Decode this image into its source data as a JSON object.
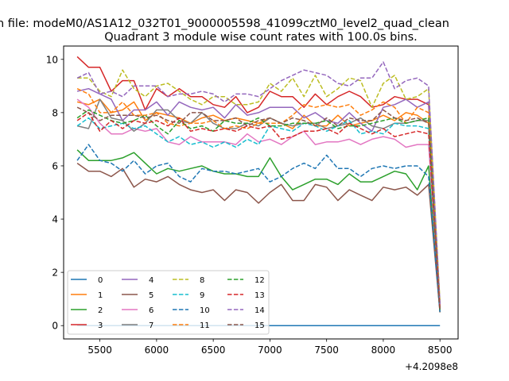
{
  "chart_data": {
    "type": "line",
    "suptitle": "n file: modeM0/AS1A12_032T01_9000005598_41099cztM0_level2_quad_clean",
    "title": "Quadrant 3 module wise count rates with 100.0s bins.",
    "xlabel": "",
    "ylabel": "",
    "x_offset_label": "+4.2098e8",
    "xlim": [
      5180,
      8660
    ],
    "ylim": [
      -0.5,
      10.5
    ],
    "x_ticks": [
      5500,
      6000,
      6500,
      7000,
      7500,
      8000,
      8500
    ],
    "y_ticks": [
      0,
      2,
      4,
      6,
      8,
      10
    ],
    "legend_position": "lower-left",
    "x": [
      5300,
      5400,
      5500,
      5600,
      5700,
      5800,
      5900,
      6000,
      6100,
      6200,
      6300,
      6400,
      6500,
      6600,
      6700,
      6800,
      6900,
      7000,
      7100,
      7200,
      7300,
      7400,
      7500,
      7600,
      7700,
      7800,
      7900,
      8000,
      8100,
      8200,
      8300,
      8400,
      8500
    ],
    "series": [
      {
        "name": "0",
        "color": "#1f77b4",
        "dash": "solid",
        "values": [
          0,
          0,
          0,
          0,
          0,
          0,
          0,
          0,
          0,
          0,
          0,
          0,
          0,
          0,
          0,
          0,
          0,
          0,
          0,
          0,
          0,
          0,
          0,
          0,
          0,
          0,
          0,
          0,
          0,
          0,
          0,
          0,
          0
        ]
      },
      {
        "name": "1",
        "color": "#ff7f0e",
        "dash": "solid",
        "values": [
          8.4,
          8.3,
          8.5,
          8.0,
          8.1,
          8.4,
          7.7,
          8.0,
          7.9,
          7.8,
          7.6,
          7.8,
          7.9,
          7.7,
          7.8,
          7.7,
          7.6,
          7.8,
          7.6,
          7.4,
          7.9,
          7.5,
          7.5,
          7.9,
          7.5,
          7.6,
          7.7,
          7.9,
          7.7,
          8.0,
          7.9,
          7.6,
          0.6
        ]
      },
      {
        "name": "2",
        "color": "#2ca02c",
        "dash": "solid",
        "values": [
          6.6,
          6.2,
          6.2,
          6.2,
          6.3,
          6.5,
          6.1,
          5.7,
          5.9,
          5.8,
          5.9,
          6.0,
          5.8,
          5.7,
          5.7,
          5.6,
          5.6,
          6.3,
          5.6,
          5.1,
          5.3,
          5.5,
          5.5,
          5.3,
          5.7,
          5.4,
          5.4,
          5.6,
          5.8,
          5.7,
          5.1,
          6.0,
          0.5
        ]
      },
      {
        "name": "3",
        "color": "#d62728",
        "dash": "solid",
        "values": [
          10.1,
          9.7,
          9.7,
          8.8,
          9.2,
          9.2,
          8.1,
          8.9,
          8.6,
          8.9,
          8.6,
          8.6,
          8.3,
          8.2,
          8.6,
          8.0,
          8.2,
          8.8,
          8.6,
          8.6,
          8.2,
          8.7,
          8.3,
          8.6,
          8.8,
          8.6,
          8.2,
          8.3,
          8.6,
          8.5,
          8.5,
          8.3,
          0.6
        ]
      },
      {
        "name": "4",
        "color": "#9467bd",
        "dash": "solid",
        "values": [
          8.8,
          8.9,
          8.7,
          8.5,
          7.7,
          8.1,
          8.1,
          8.4,
          7.9,
          8.4,
          8.2,
          8.1,
          8.2,
          7.8,
          8.3,
          7.9,
          8.0,
          8.2,
          8.2,
          8.2,
          7.8,
          8.0,
          7.7,
          7.6,
          8.0,
          7.6,
          7.3,
          8.2,
          8.3,
          8.5,
          8.2,
          8.4,
          0.8
        ]
      },
      {
        "name": "5",
        "color": "#8c564b",
        "dash": "solid",
        "values": [
          6.1,
          5.8,
          5.8,
          5.6,
          5.9,
          5.2,
          5.5,
          5.4,
          5.6,
          5.3,
          5.1,
          5.0,
          5.1,
          4.7,
          5.1,
          5.0,
          4.6,
          5.0,
          5.3,
          4.7,
          4.7,
          5.3,
          5.2,
          4.7,
          5.1,
          4.9,
          4.7,
          5.2,
          5.1,
          5.2,
          4.9,
          5.3,
          0.5
        ]
      },
      {
        "name": "6",
        "color": "#e377c2",
        "dash": "solid",
        "values": [
          8.5,
          8.2,
          7.6,
          7.2,
          7.2,
          7.4,
          7.3,
          7.4,
          6.9,
          6.8,
          7.1,
          6.9,
          6.9,
          6.9,
          6.8,
          7.2,
          6.9,
          7.0,
          6.8,
          7.1,
          7.3,
          6.8,
          6.9,
          6.9,
          7.0,
          6.8,
          7.0,
          7.1,
          7.0,
          6.7,
          6.8,
          6.8,
          0.7
        ]
      },
      {
        "name": "7",
        "color": "#7f7f7f",
        "dash": "solid",
        "values": [
          7.5,
          7.4,
          8.5,
          7.8,
          7.7,
          7.3,
          7.6,
          8.1,
          8.1,
          7.7,
          7.6,
          8.0,
          7.6,
          7.4,
          7.4,
          7.6,
          7.5,
          7.8,
          7.6,
          7.5,
          7.6,
          7.6,
          7.4,
          7.5,
          7.6,
          7.8,
          7.5,
          7.4,
          7.6,
          7.6,
          7.7,
          7.7,
          0.6
        ]
      },
      {
        "name": "8",
        "color": "#bcbd22",
        "dash": "dash",
        "values": [
          9.3,
          9.3,
          8.8,
          8.6,
          9.6,
          8.9,
          8.6,
          9.0,
          9.1,
          8.8,
          8.5,
          8.3,
          8.6,
          8.6,
          8.3,
          8.3,
          8.4,
          9.1,
          8.8,
          9.3,
          8.6,
          9.4,
          8.6,
          8.9,
          9.3,
          9.2,
          8.2,
          9.1,
          9.4,
          8.5,
          8.6,
          8.9,
          0.9
        ]
      },
      {
        "name": "9",
        "color": "#17becf",
        "dash": "dash",
        "values": [
          7.5,
          7.8,
          7.4,
          7.5,
          7.6,
          7.4,
          7.5,
          7.2,
          6.9,
          7.1,
          6.8,
          6.9,
          6.7,
          6.9,
          6.7,
          7.0,
          6.8,
          7.5,
          7.4,
          7.3,
          7.6,
          7.5,
          7.3,
          7.5,
          7.7,
          7.2,
          7.3,
          7.2,
          7.6,
          7.5,
          7.5,
          7.4,
          0.6
        ]
      },
      {
        "name": "10",
        "color": "#1f77b4",
        "dash": "dash",
        "values": [
          6.2,
          6.8,
          6.2,
          6.1,
          5.8,
          6.2,
          5.7,
          6.0,
          6.1,
          5.6,
          5.4,
          5.9,
          5.8,
          5.8,
          5.7,
          5.8,
          5.9,
          5.4,
          5.6,
          5.9,
          6.1,
          5.9,
          6.4,
          5.9,
          5.9,
          5.6,
          5.9,
          6.0,
          5.9,
          6.0,
          6.0,
          5.6,
          0.5
        ]
      },
      {
        "name": "11",
        "color": "#ff7f0e",
        "dash": "dash",
        "values": [
          8.9,
          8.7,
          8.0,
          8.0,
          8.4,
          7.9,
          7.9,
          8.0,
          7.6,
          7.5,
          7.6,
          7.6,
          7.7,
          7.4,
          7.5,
          7.4,
          7.6,
          7.6,
          7.6,
          7.9,
          8.3,
          8.2,
          8.3,
          8.2,
          8.3,
          7.9,
          8.1,
          8.4,
          8.2,
          7.6,
          8.2,
          8.0,
          0.6
        ]
      },
      {
        "name": "12",
        "color": "#2ca02c",
        "dash": "dash",
        "values": [
          7.8,
          8.1,
          7.9,
          7.7,
          7.6,
          7.7,
          7.9,
          7.5,
          7.2,
          7.7,
          7.4,
          7.5,
          7.3,
          7.7,
          7.6,
          7.6,
          7.8,
          7.5,
          7.5,
          7.6,
          7.6,
          7.6,
          7.7,
          7.4,
          7.5,
          7.5,
          7.6,
          7.7,
          7.8,
          7.6,
          7.7,
          7.8,
          0.6
        ]
      },
      {
        "name": "13",
        "color": "#d62728",
        "dash": "dash",
        "values": [
          7.7,
          8.0,
          7.3,
          7.7,
          7.4,
          7.7,
          7.6,
          7.7,
          7.5,
          7.8,
          7.3,
          7.4,
          7.3,
          7.4,
          7.3,
          7.5,
          7.4,
          7.5,
          7.0,
          7.1,
          7.3,
          7.3,
          7.4,
          7.2,
          7.6,
          7.4,
          7.2,
          7.4,
          7.1,
          7.2,
          7.3,
          7.2,
          0.6
        ]
      },
      {
        "name": "14",
        "color": "#9467bd",
        "dash": "dash",
        "values": [
          9.3,
          9.5,
          8.7,
          8.8,
          8.6,
          9.0,
          9.0,
          9.0,
          8.6,
          8.7,
          8.7,
          8.8,
          8.7,
          8.4,
          8.7,
          8.7,
          8.6,
          8.9,
          9.2,
          9.4,
          9.6,
          9.5,
          9.4,
          9.1,
          9.0,
          9.3,
          9.3,
          9.9,
          8.9,
          9.2,
          9.3,
          9.0,
          0.8
        ]
      },
      {
        "name": "15",
        "color": "#8c564b",
        "dash": "dash",
        "values": [
          8.2,
          8.0,
          7.7,
          7.9,
          7.9,
          7.9,
          7.8,
          7.9,
          7.7,
          7.6,
          8.0,
          8.0,
          7.7,
          7.7,
          7.8,
          7.5,
          7.7,
          7.8,
          7.6,
          7.8,
          7.7,
          7.5,
          7.8,
          7.5,
          7.8,
          7.7,
          7.7,
          8.1,
          7.8,
          7.7,
          7.8,
          7.6,
          0.6
        ]
      }
    ]
  }
}
